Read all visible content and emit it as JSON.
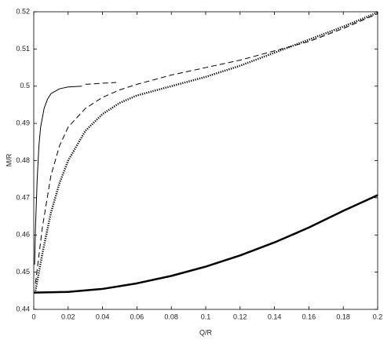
{
  "chart_data": {
    "type": "line",
    "xlabel": "Q/R",
    "ylabel": "M/R",
    "xlim": [
      0,
      0.2
    ],
    "ylim": [
      0.44,
      0.52
    ],
    "xticks": [
      0,
      0.02,
      0.04,
      0.06,
      0.08,
      0.1,
      0.12,
      0.14,
      0.16,
      0.18,
      0.2
    ],
    "yticks": [
      0.44,
      0.45,
      0.46,
      0.47,
      0.48,
      0.49,
      0.5,
      0.51,
      0.52
    ],
    "series": [
      {
        "color": "#000000",
        "style": "solid",
        "width": 1,
        "x": [
          0.0005,
          0.001,
          0.002,
          0.003,
          0.004,
          0.006,
          0.008,
          0.01,
          0.015,
          0.02,
          0.028
        ],
        "values": [
          0.452,
          0.462,
          0.475,
          0.484,
          0.489,
          0.494,
          0.4965,
          0.498,
          0.4993,
          0.4998,
          0.5
        ]
      },
      {
        "color": "#000000",
        "style": "dashed",
        "width": 1,
        "x": [
          0.03,
          0.048
        ],
        "values": [
          0.5005,
          0.501
        ]
      },
      {
        "color": "#000000",
        "style": "dashed",
        "width": 1,
        "x": [
          0.001,
          0.005,
          0.01,
          0.015,
          0.02,
          0.03,
          0.04,
          0.05,
          0.06,
          0.08,
          0.1,
          0.12,
          0.14,
          0.16,
          0.18,
          0.2
        ],
        "values": [
          0.447,
          0.462,
          0.476,
          0.484,
          0.489,
          0.494,
          0.497,
          0.499,
          0.5005,
          0.503,
          0.505,
          0.507,
          0.5095,
          0.512,
          0.5155,
          0.5195
        ]
      },
      {
        "color": "#000000",
        "style": "dotted",
        "width": 2.5,
        "x": [
          0.001,
          0.005,
          0.01,
          0.015,
          0.02,
          0.03,
          0.04,
          0.05,
          0.06,
          0.08,
          0.1,
          0.12,
          0.14,
          0.16,
          0.18,
          0.2
        ],
        "values": [
          0.445,
          0.455,
          0.466,
          0.474,
          0.48,
          0.488,
          0.4925,
          0.4955,
          0.4975,
          0.5,
          0.5025,
          0.5055,
          0.509,
          0.5125,
          0.516,
          0.5198
        ]
      },
      {
        "color": "#000000",
        "style": "solid",
        "width": 2.5,
        "x": [
          0,
          0.02,
          0.04,
          0.06,
          0.08,
          0.1,
          0.12,
          0.14,
          0.16,
          0.18,
          0.2
        ],
        "values": [
          0.4445,
          0.4447,
          0.4455,
          0.447,
          0.449,
          0.4515,
          0.4545,
          0.458,
          0.462,
          0.4665,
          0.4707
        ]
      }
    ]
  }
}
